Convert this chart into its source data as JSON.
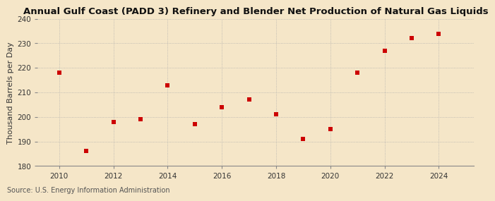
{
  "title": "Annual Gulf Coast (PADD 3) Refinery and Blender Net Production of Natural Gas Liquids",
  "ylabel": "Thousand Barrels per Day",
  "source": "Source: U.S. Energy Information Administration",
  "years": [
    2010,
    2011,
    2012,
    2013,
    2014,
    2015,
    2016,
    2017,
    2018,
    2019,
    2020,
    2021,
    2022,
    2023,
    2024
  ],
  "values": [
    218,
    186,
    198,
    199,
    213,
    197,
    204,
    207,
    201,
    191,
    195,
    218,
    227,
    232,
    234
  ],
  "marker_color": "#cc0000",
  "background_color": "#f5e6c8",
  "grid_color": "#aaaaaa",
  "ylim": [
    180,
    240
  ],
  "yticks": [
    180,
    190,
    200,
    210,
    220,
    230,
    240
  ],
  "xticks": [
    2010,
    2012,
    2014,
    2016,
    2018,
    2020,
    2022,
    2024
  ],
  "title_fontsize": 9.5,
  "label_fontsize": 8,
  "tick_fontsize": 7.5,
  "source_fontsize": 7,
  "marker_size": 4
}
